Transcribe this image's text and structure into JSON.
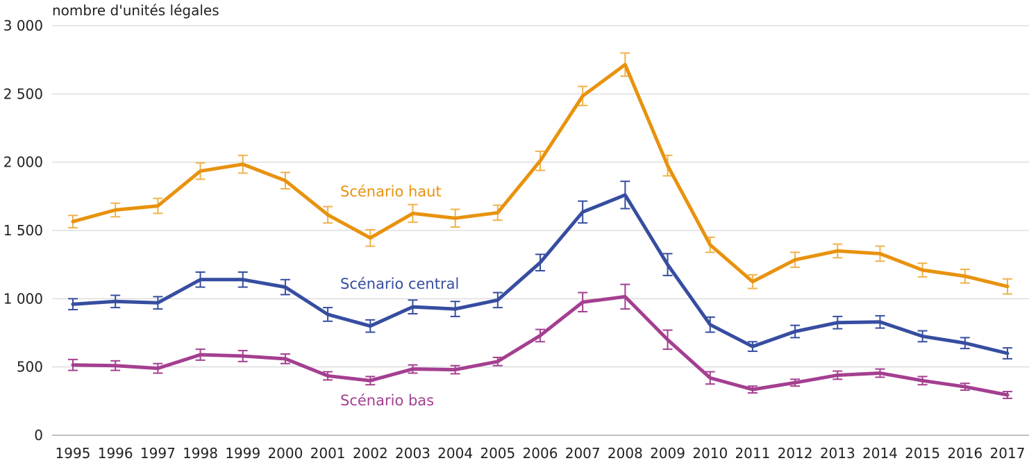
{
  "chart_data": {
    "type": "line",
    "title": "",
    "ylabel": "nombre d'unités légales",
    "xlabel": "",
    "ylim": [
      0,
      3000
    ],
    "yticks": [
      0,
      500,
      1000,
      1500,
      2000,
      2500,
      3000
    ],
    "ytick_labels": [
      "0",
      "500",
      "1 000",
      "1 500",
      "2 000",
      "2 500",
      "3 000"
    ],
    "categories": [
      "1995",
      "1996",
      "1997",
      "1998",
      "1999",
      "2000",
      "2001",
      "2002",
      "2003",
      "2004",
      "2005",
      "2006",
      "2007",
      "2008",
      "2009",
      "2010",
      "2011",
      "2012",
      "2013",
      "2014",
      "2015",
      "2016",
      "2017"
    ],
    "grid": true,
    "series": [
      {
        "name": "Scénario haut",
        "color": "#e8920e",
        "values": [
          1565,
          1650,
          1680,
          1935,
          1985,
          1865,
          1615,
          1445,
          1625,
          1590,
          1630,
          2010,
          2485,
          2715,
          1975,
          1395,
          1125,
          1285,
          1350,
          1330,
          1210,
          1165,
          1090
        ],
        "errors": [
          45,
          50,
          55,
          60,
          65,
          60,
          60,
          60,
          65,
          65,
          55,
          70,
          70,
          85,
          75,
          55,
          50,
          55,
          50,
          55,
          50,
          50,
          55
        ]
      },
      {
        "name": "Scénario central",
        "color": "#364da0",
        "values": [
          960,
          980,
          970,
          1140,
          1140,
          1085,
          885,
          800,
          940,
          925,
          990,
          1265,
          1635,
          1760,
          1250,
          810,
          650,
          760,
          825,
          830,
          725,
          675,
          600
        ],
        "errors": [
          40,
          45,
          45,
          55,
          55,
          55,
          50,
          45,
          50,
          55,
          55,
          60,
          80,
          100,
          80,
          55,
          35,
          45,
          45,
          45,
          40,
          40,
          40
        ]
      },
      {
        "name": "Scénario bas",
        "color": "#a43f90",
        "values": [
          515,
          510,
          490,
          590,
          580,
          560,
          435,
          400,
          485,
          480,
          540,
          730,
          975,
          1015,
          700,
          420,
          335,
          385,
          440,
          455,
          400,
          355,
          295
        ],
        "errors": [
          40,
          35,
          35,
          40,
          40,
          35,
          30,
          30,
          30,
          30,
          30,
          45,
          70,
          90,
          70,
          45,
          25,
          25,
          30,
          30,
          30,
          25,
          25
        ]
      }
    ],
    "annotations": [
      {
        "text": "Scénario haut",
        "series": "Scénario haut"
      },
      {
        "text": "Scénario central",
        "series": "Scénario central"
      },
      {
        "text": "Scénario bas",
        "series": "Scénario bas"
      }
    ]
  }
}
